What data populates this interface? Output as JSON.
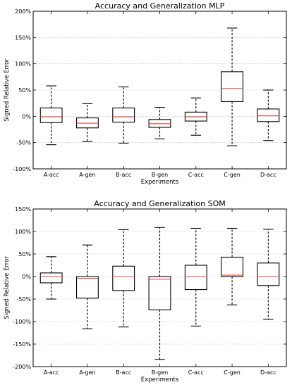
{
  "chart_data": [
    {
      "type": "box",
      "title": "Accuracy and Generalization MLP",
      "xlabel": "Experiments",
      "ylabel": "Signed Relative Error",
      "ylim": [
        -100,
        200
      ],
      "yticks": [
        -100,
        -50,
        0,
        50,
        100,
        150,
        200
      ],
      "ytick_labels": [
        "-100%",
        "-50%",
        "0%",
        "50%",
        "100%",
        "150%",
        "200%"
      ],
      "grid": true,
      "categories": [
        "A-acc",
        "A-gen",
        "B-acc",
        "B-gen",
        "C-acc",
        "C-gen",
        "D-acc"
      ],
      "boxes": [
        {
          "whislo": -54,
          "q1": -12,
          "med": -1,
          "q3": 16,
          "whishi": 58
        },
        {
          "whislo": -48,
          "q1": -22,
          "med": -13,
          "q3": -3,
          "whishi": 24
        },
        {
          "whislo": -51,
          "q1": -11,
          "med": -1,
          "q3": 16,
          "whishi": 56
        },
        {
          "whislo": -43,
          "q1": -21,
          "med": -14,
          "q3": -6,
          "whishi": 17
        },
        {
          "whislo": -36,
          "q1": -9,
          "med": -1,
          "q3": 8,
          "whishi": 35
        },
        {
          "whislo": -56,
          "q1": 28,
          "med": 53,
          "q3": 85,
          "whishi": 168
        },
        {
          "whislo": -46,
          "q1": -10,
          "med": 1,
          "q3": 14,
          "whishi": 50
        }
      ]
    },
    {
      "type": "box",
      "title": "Accuracy and Generalization SOM",
      "xlabel": "Experiments",
      "ylabel": "Signed Relative Error",
      "ylim": [
        -200,
        150
      ],
      "yticks": [
        -200,
        -150,
        -100,
        -50,
        0,
        50,
        100,
        150
      ],
      "ytick_labels": [
        "-200%",
        "-150%",
        "-100%",
        "-50%",
        "0%",
        "50%",
        "100%",
        "150%"
      ],
      "grid": true,
      "categories": [
        "A-acc",
        "A-gen",
        "B-acc",
        "B-gen",
        "C-acc",
        "C-gen",
        "D-acc"
      ],
      "boxes": [
        {
          "whislo": -50,
          "q1": -14,
          "med": 0,
          "q3": 8,
          "whishi": 44
        },
        {
          "whislo": -116,
          "q1": -48,
          "med": -4,
          "q3": 0,
          "whishi": 70
        },
        {
          "whislo": -112,
          "q1": -31,
          "med": 0,
          "q3": 23,
          "whishi": 104
        },
        {
          "whislo": -184,
          "q1": -74,
          "med": -6,
          "q3": 0,
          "whishi": 109
        },
        {
          "whislo": -110,
          "q1": -29,
          "med": 0,
          "q3": 25,
          "whishi": 107
        },
        {
          "whislo": -63,
          "q1": 0,
          "med": 3,
          "q3": 43,
          "whishi": 107
        },
        {
          "whislo": -95,
          "q1": -20,
          "med": 0,
          "q3": 30,
          "whishi": 105
        }
      ]
    }
  ]
}
